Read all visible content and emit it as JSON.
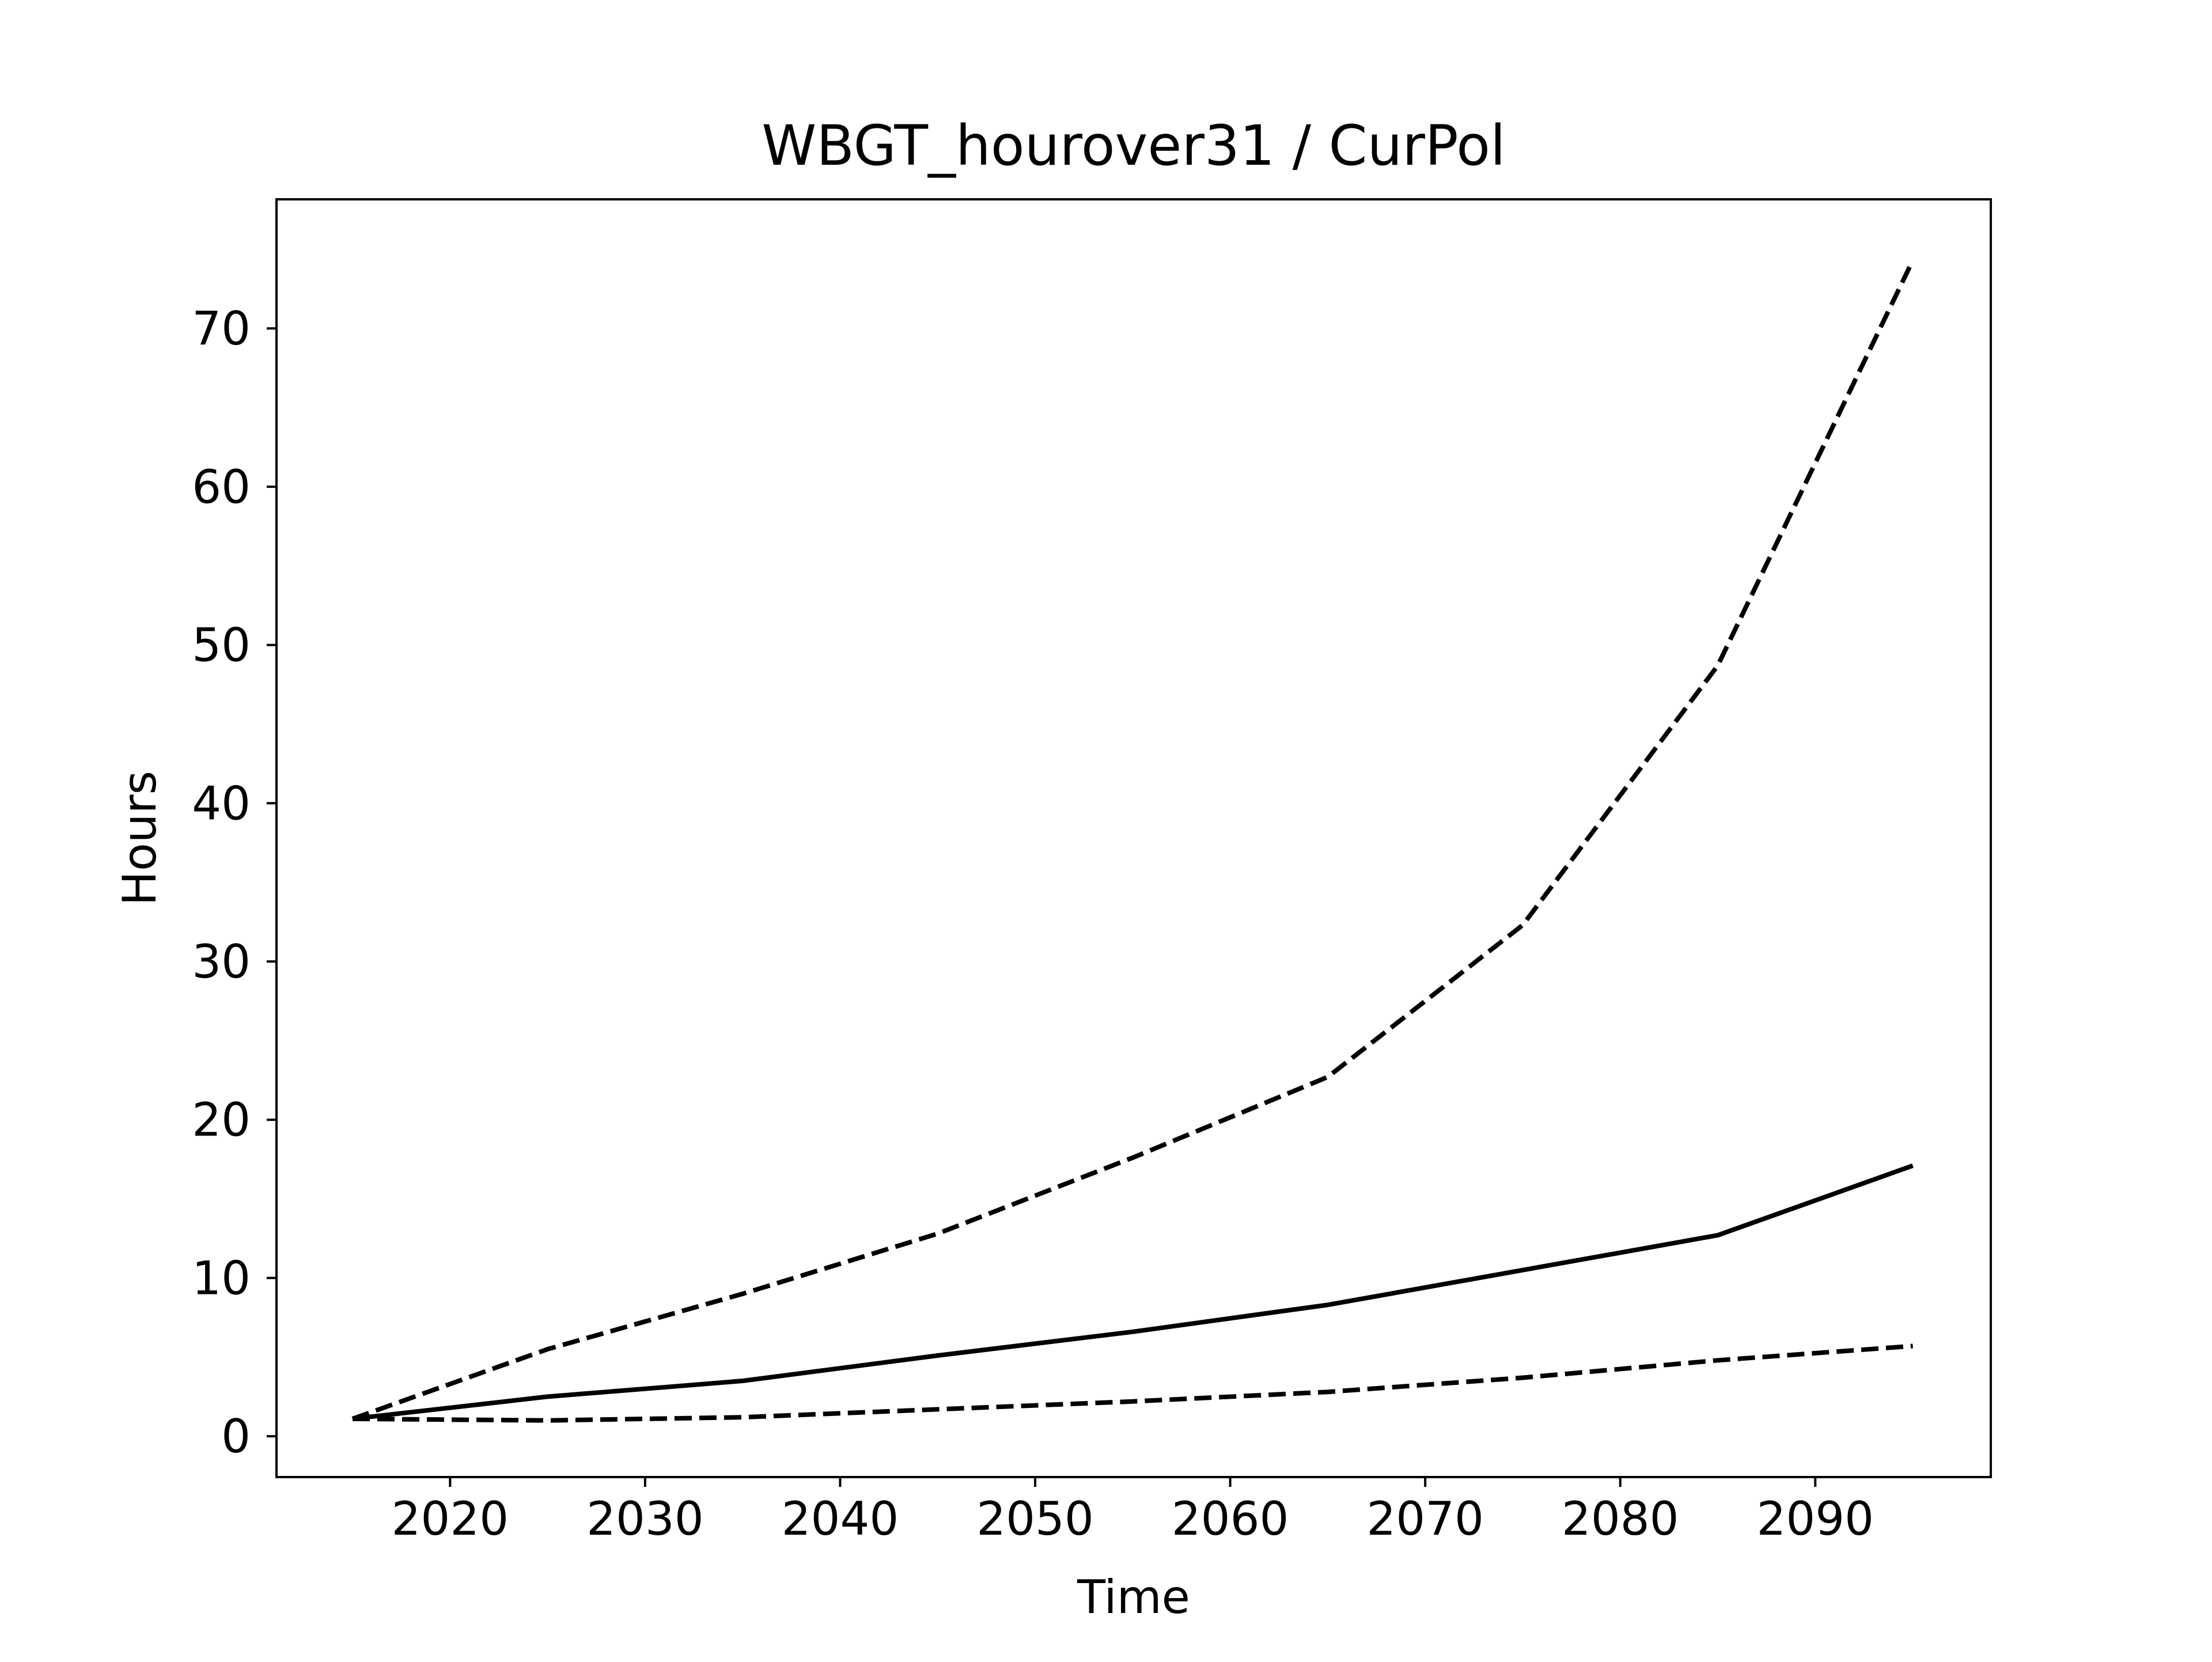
{
  "chart_data": {
    "type": "line",
    "title": "WBGT_hourover31 / CurPol",
    "xlabel": "Time",
    "ylabel": "Hours",
    "xlim": [
      2011.1,
      2099.0
    ],
    "ylim": [
      -2.58,
      78.16
    ],
    "xticks": [
      2020,
      2030,
      2040,
      2050,
      2060,
      2070,
      2080,
      2090
    ],
    "yticks": [
      0,
      10,
      20,
      30,
      40,
      50,
      60,
      70
    ],
    "grid": false,
    "legend": "none",
    "x": [
      2015,
      2025,
      2035,
      2045,
      2055,
      2065,
      2075,
      2085,
      2095
    ],
    "series": [
      {
        "line_style": "solid",
        "color": "#000000",
        "values": [
          1.1,
          2.5,
          3.5,
          5.1,
          6.6,
          8.3,
          10.5,
          12.7,
          17.1
        ]
      },
      {
        "line_style": "dashed",
        "color": "#000000",
        "values": [
          1.1,
          5.5,
          9.0,
          12.8,
          17.6,
          22.7,
          32.3,
          48.7,
          74.3
        ]
      },
      {
        "line_style": "dashed",
        "color": "#000000",
        "values": [
          1.1,
          1.0,
          1.2,
          1.7,
          2.2,
          2.8,
          3.7,
          4.8,
          5.7
        ]
      }
    ]
  }
}
